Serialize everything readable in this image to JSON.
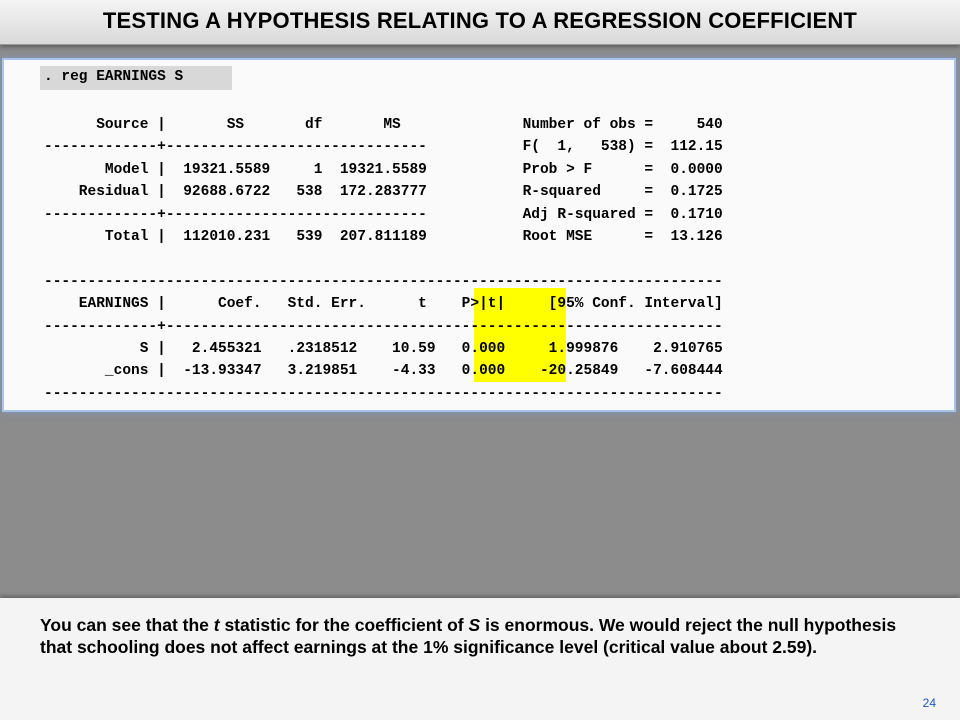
{
  "title": "TESTING A HYPOTHESIS RELATING TO A REGRESSION COEFFICIENT",
  "stata": {
    "command": ". reg EARNINGS S",
    "anova_lines": [
      "      Source |       SS       df       MS              Number of obs =     540",
      "-------------+------------------------------           F(  1,   538) =  112.15",
      "       Model |  19321.5589     1  19321.5589           Prob > F      =  0.0000",
      "    Residual |  92688.6722   538  172.283777           R-squared     =  0.1725",
      "-------------+------------------------------           Adj R-squared =  0.1710",
      "       Total |  112010.231   539  207.811189           Root MSE      =  13.126"
    ],
    "coef_lines": [
      "------------------------------------------------------------------------------",
      "    EARNINGS |      Coef.   Std. Err.      t    P>|t|     [95% Conf. Interval]",
      "-------------+----------------------------------------------------------------",
      "           S |   2.455321   .2318512    10.59   0.000     1.999876    2.910765",
      "       _cons |  -13.93347   3.219851    -4.33   0.000    -20.25849   -7.608444",
      "------------------------------------------------------------------------------"
    ],
    "highlight_color": "#ffff00"
  },
  "caption": {
    "part1": "You can see that the ",
    "t_italic": "t",
    "part2": " statistic for the coefficient of ",
    "s_italic": "S",
    "part3": " is enormous.  We would reject the null hypothesis that schooling does not affect earnings at the 1% significance level (critical value about 2.59)."
  },
  "page_number": "24"
}
